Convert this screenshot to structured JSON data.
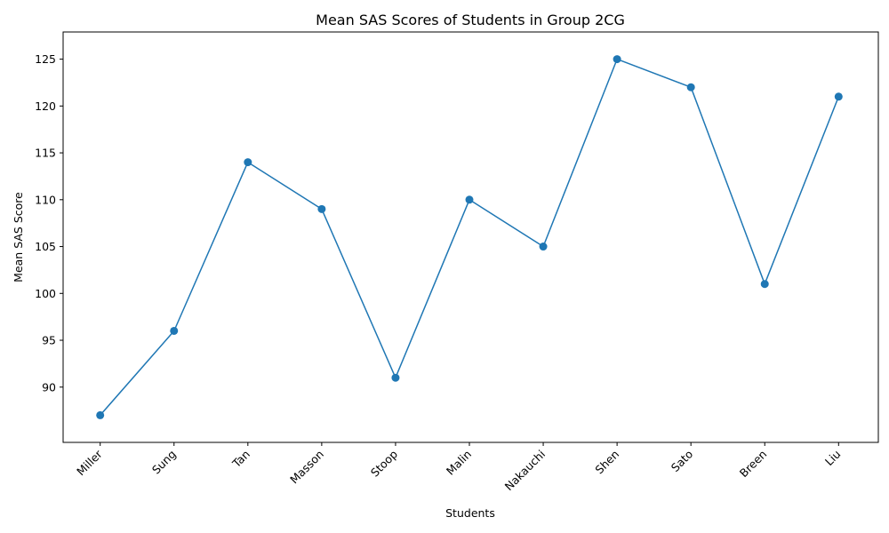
{
  "chart_data": {
    "type": "line",
    "title": "Mean SAS Scores of Students in Group 2CG",
    "xlabel": "Students",
    "ylabel": "Mean SAS Score",
    "categories": [
      "Miller",
      "Sung",
      "Tan",
      "Masson",
      "Stoop",
      "Malin",
      "Nakauchi",
      "Shen",
      "Sato",
      "Breen",
      "Liu"
    ],
    "series": [
      {
        "values": [
          87,
          96,
          114,
          109,
          91,
          110,
          105,
          125,
          122,
          101,
          121
        ],
        "color": "#1f77b4",
        "marker": "circle"
      }
    ],
    "ylim": [
      84.1,
      127.9
    ],
    "yticks": [
      90,
      95,
      100,
      105,
      110,
      115,
      120,
      125
    ],
    "grid": false,
    "x_tick_rotation": 45
  }
}
